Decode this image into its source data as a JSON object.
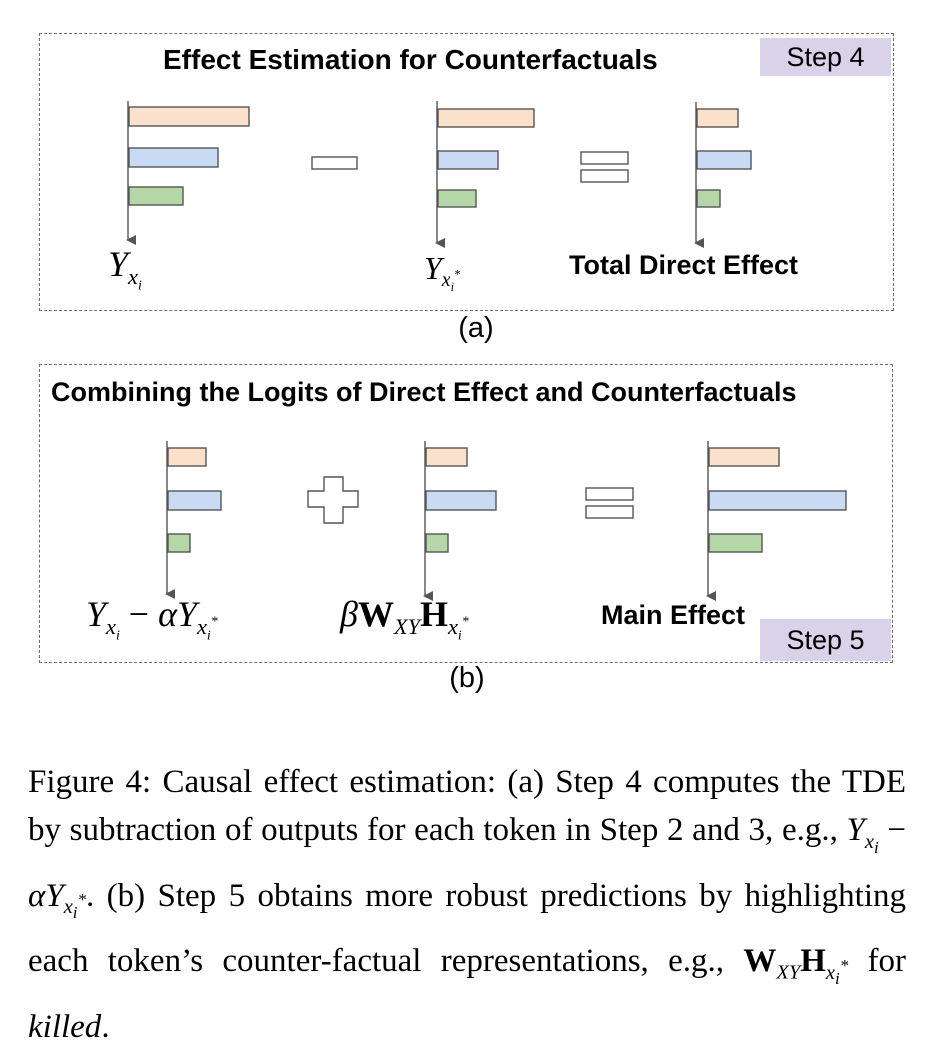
{
  "panel_a": {
    "title": "Effect Estimation for Counterfactuals",
    "step": "Step 4",
    "label": "(a)",
    "result_label": "Total Direct Effect",
    "term1": "Y_{x_i}",
    "term2": "Y_{x_i^*}"
  },
  "panel_b": {
    "title": "Combining the Logits of Direct Effect and Counterfactuals",
    "step": "Step 5",
    "label": "(b)",
    "result_label": "Main Effect",
    "term1": "Y_{x_i} − αY_{x_i^*}",
    "term2": "βW_{XY}H_{x_i^*}"
  },
  "colors": {
    "bar_top": "#fbe1cb",
    "bar_mid": "#c9daf5",
    "bar_low": "#b5d7a8",
    "step_badge": "#d9d2e9",
    "border": "#6f6f6f"
  },
  "caption": {
    "figure_label": "Figure 4:",
    "text_1": "Causal effect estimation: (a) Step 4 computes the TDE by subtraction of outputs for each token in Step 2 and 3, e.g.,",
    "text_2": ". (b) Step 5 obtains more robust predictions by highlighting each token’s counter-factual representations, e.g.,",
    "text_3": "for",
    "emph": "killed",
    "end": "."
  }
}
